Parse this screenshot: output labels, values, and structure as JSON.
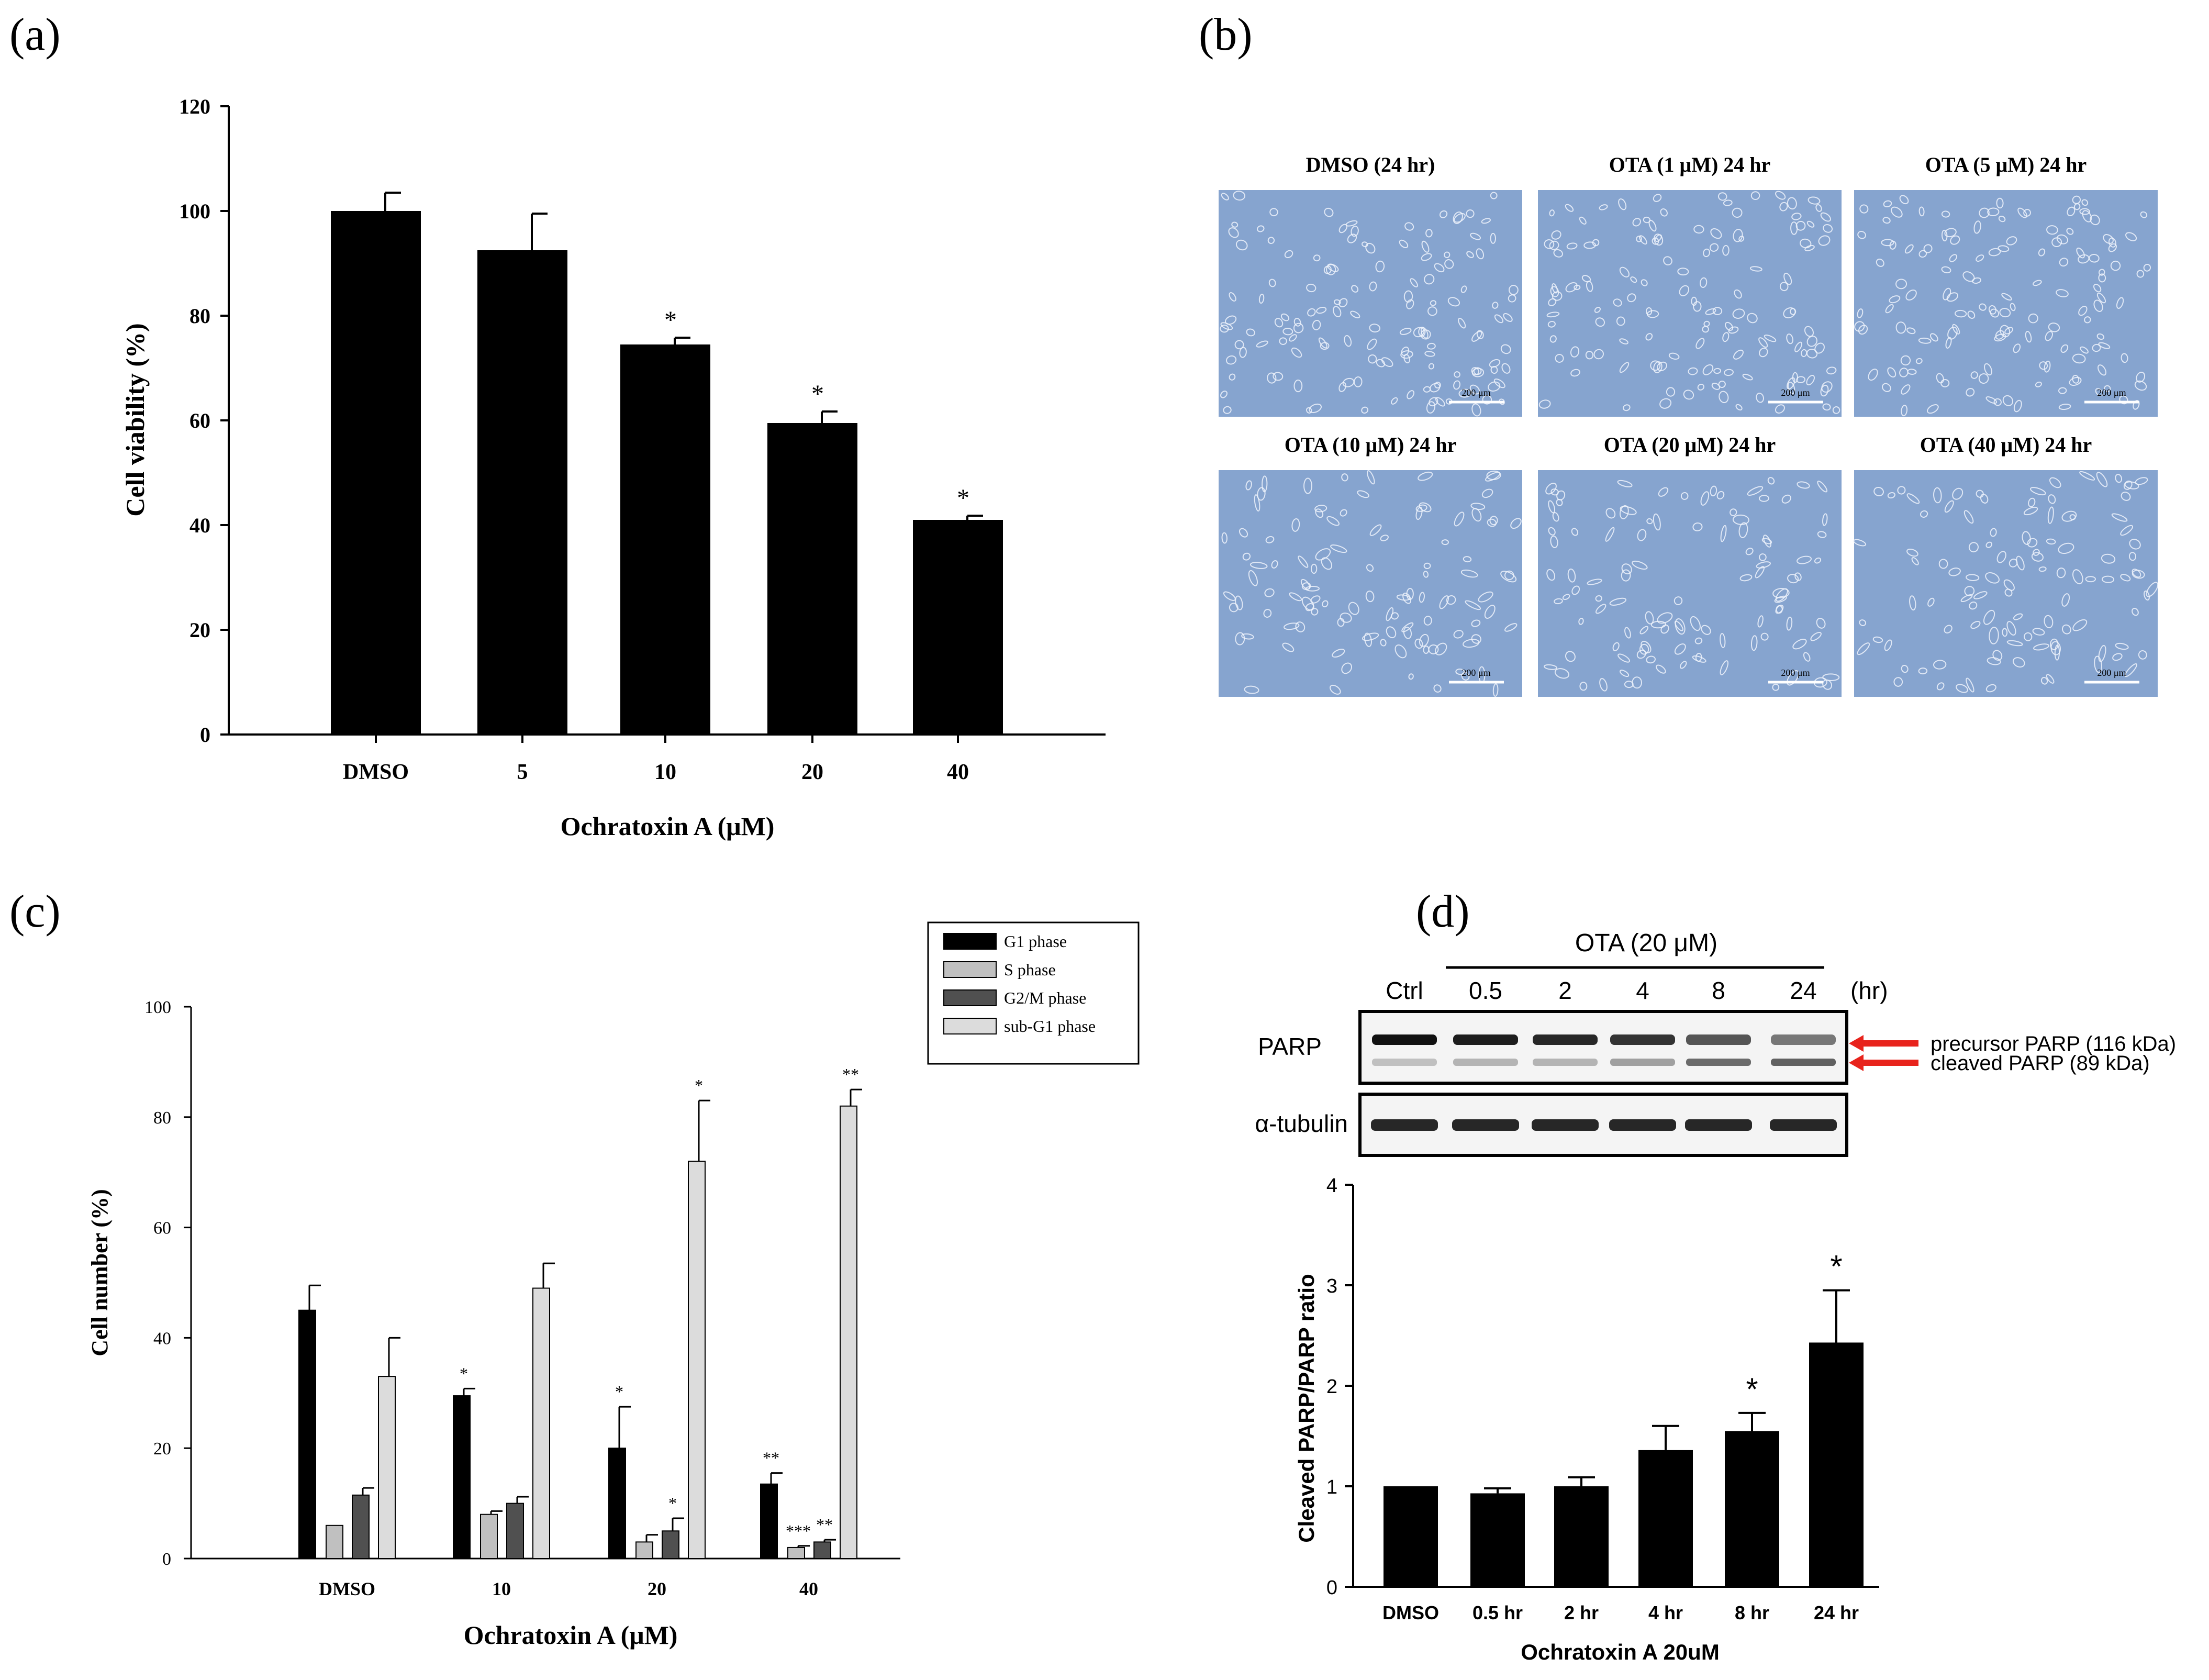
{
  "panels": {
    "a": "(a)",
    "b": "(b)",
    "c": "(c)",
    "d": "(d)"
  },
  "chart_data": [
    {
      "id": "a",
      "type": "bar",
      "title": "",
      "xlabel": "Ochratoxin A (μM)",
      "ylabel": "Cell viability (%)",
      "categories": [
        "DMSO",
        "5",
        "10",
        "20",
        "40"
      ],
      "values": [
        100,
        92.5,
        74.5,
        59.5,
        41
      ],
      "errors": [
        3.5,
        7,
        1.3,
        2.2,
        0.8
      ],
      "annotations": [
        "",
        "",
        "*",
        "*",
        "*"
      ],
      "ylim": [
        0,
        120
      ],
      "yticks": [
        "0",
        "20",
        "40",
        "60",
        "80",
        "100",
        "120"
      ],
      "color": "#000000",
      "grid": false
    },
    {
      "id": "c",
      "type": "bar",
      "title": "",
      "xlabel": "Ochratoxin A (μM)",
      "ylabel": "Cell number (%)",
      "categories": [
        "DMSO",
        "10",
        "20",
        "40"
      ],
      "series": [
        {
          "name": "G1 phase",
          "color": "#000000",
          "values": [
            45,
            29.5,
            20,
            13.5
          ],
          "errors": [
            4.5,
            1.3,
            7.5,
            2
          ],
          "annotations": [
            "",
            "*",
            "*",
            "**"
          ]
        },
        {
          "name": "S phase",
          "color": "#c0c0c0",
          "values": [
            6,
            8,
            3,
            2
          ],
          "errors": [
            0,
            0.6,
            1.3,
            0.3
          ],
          "annotations": [
            "",
            "",
            "",
            "***"
          ]
        },
        {
          "name": "G2/M phase",
          "color": "#505050",
          "values": [
            11.5,
            10,
            5,
            3
          ],
          "errors": [
            1.3,
            1.2,
            2.3,
            0.4
          ],
          "annotations": [
            "",
            "",
            "*",
            "**"
          ]
        },
        {
          "name": "sub-G1 phase",
          "color": "#dcdcdc",
          "values": [
            33,
            49,
            72,
            82
          ],
          "errors": [
            7,
            4.5,
            11,
            3
          ],
          "annotations": [
            "",
            "",
            "*",
            "**"
          ]
        }
      ],
      "ylim": [
        0,
        100
      ],
      "yticks": [
        "0",
        "20",
        "40",
        "60",
        "80",
        "100"
      ],
      "legend": "top-right",
      "grid": false
    },
    {
      "id": "d",
      "type": "bar",
      "title": "",
      "xlabel": "Ochratoxin A 20uM",
      "ylabel": "Cleaved PARP/PARP ratio",
      "categories": [
        "DMSO",
        "0.5 hr",
        "2 hr",
        "4 hr",
        "8 hr",
        "24 hr"
      ],
      "values": [
        1,
        0.93,
        1,
        1.36,
        1.55,
        2.43
      ],
      "errors": [
        0,
        0.05,
        0.09,
        0.24,
        0.18,
        0.52
      ],
      "annotations": [
        "",
        "",
        "",
        "",
        "*",
        "*"
      ],
      "ylim": [
        0,
        4
      ],
      "yticks": [
        "0",
        "1",
        "2",
        "3",
        "4"
      ],
      "color": "#000000",
      "grid": false
    }
  ],
  "micrographs": {
    "titles": [
      "DMSO (24 hr)",
      "OTA (1 μM) 24 hr",
      "OTA (5 μM) 24 hr",
      "OTA (10 μM) 24 hr",
      "OTA (20 μM) 24 hr",
      "OTA (40 μM) 24 hr"
    ],
    "scale_label": "200 μm",
    "background_color": "#86a4cf"
  },
  "western_blot": {
    "treatment_label": "OTA (20 μM)",
    "lanes": [
      "Ctrl",
      "0.5",
      "2",
      "4",
      "8",
      "24"
    ],
    "unit_label": "(hr)",
    "rows": [
      "PARP",
      "α-tubulin"
    ],
    "bands": [
      "precursor PARP (116 kDa)",
      "cleaved PARP (89 kDa)"
    ],
    "arrow_color": "#e8231c"
  }
}
